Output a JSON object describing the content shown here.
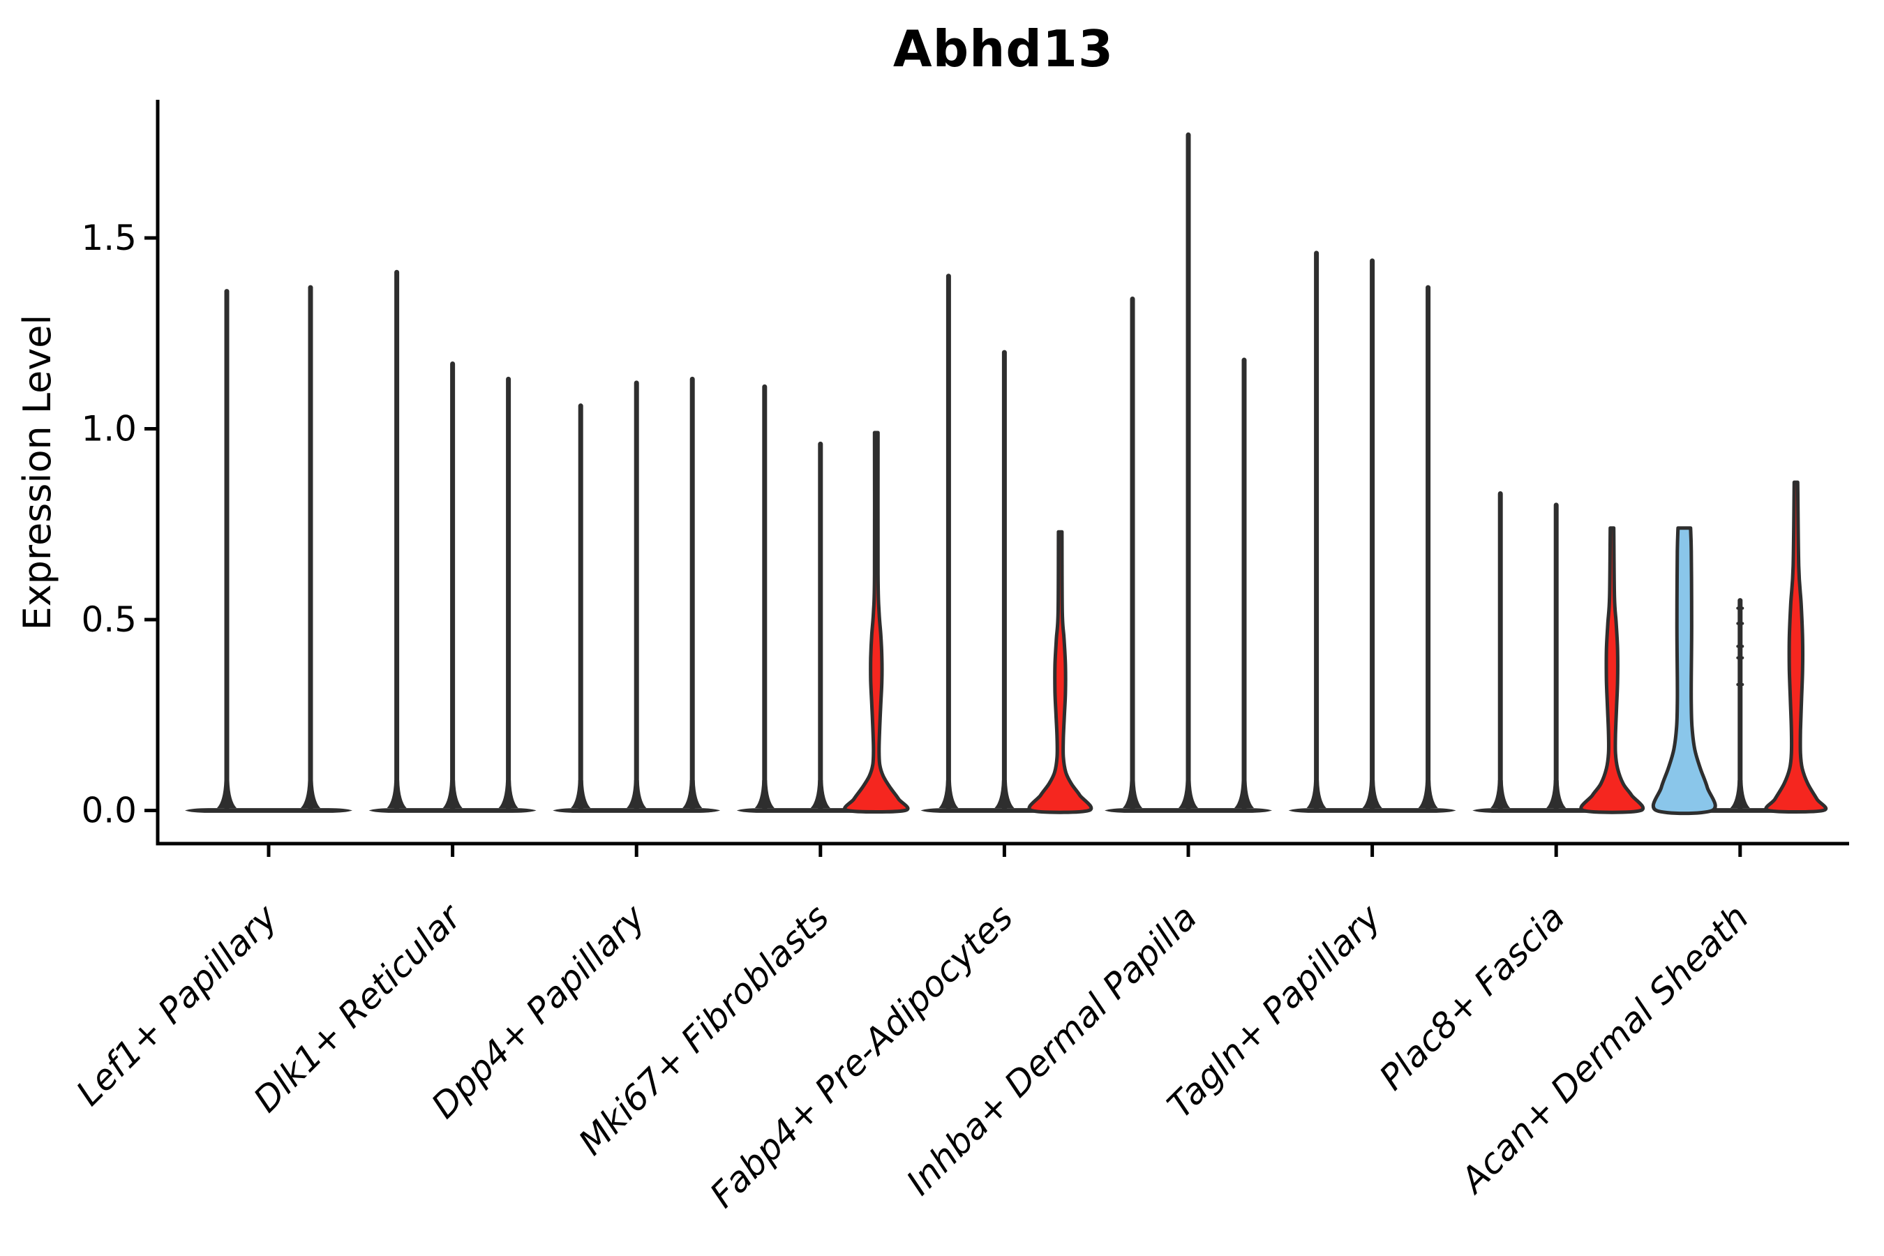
{
  "chart_data": {
    "type": "violin",
    "title": "Abhd13",
    "ylabel": "Expression Level",
    "xlabel": "",
    "yticks": [
      "0.0",
      "0.5",
      "1.0",
      "1.5"
    ],
    "ytick_values": [
      0.0,
      0.5,
      1.0,
      1.5
    ],
    "ylim": [
      0,
      1.86
    ],
    "grid": false,
    "legend": "none",
    "colors": {
      "red": "#f5261f",
      "blue": "#8ac6ea",
      "outline": "#2e2e2e",
      "axis": "#000000",
      "background": "#ffffff"
    },
    "categories": [
      "Lef1+ Papillary",
      "Dlk1+ Reticular",
      "Dpp4+ Papillary",
      "Mki67+ Fibroblasts",
      "Fabp4+ Pre-Adipocytes",
      "Inhba+ Dermal Papilla",
      "Tagln+ Papillary",
      "Plac8+ Fascia",
      "Acan+ Dermal Sheath"
    ],
    "groups": [
      {
        "category": "Lef1+ Papillary",
        "violins": [
          {
            "max": 1.36,
            "style": "spike"
          },
          {
            "max": 1.37,
            "style": "spike"
          }
        ]
      },
      {
        "category": "Dlk1+ Reticular",
        "violins": [
          {
            "max": 1.41,
            "style": "spike"
          },
          {
            "max": 1.17,
            "style": "spike"
          },
          {
            "max": 1.13,
            "style": "spike"
          }
        ]
      },
      {
        "category": "Dpp4+ Papillary",
        "violins": [
          {
            "max": 1.06,
            "style": "spike"
          },
          {
            "max": 1.12,
            "style": "spike"
          },
          {
            "max": 1.13,
            "style": "spike"
          }
        ]
      },
      {
        "category": "Mki67+ Fibroblasts",
        "violins": [
          {
            "max": 1.11,
            "style": "spike"
          },
          {
            "max": 0.96,
            "style": "spike"
          },
          {
            "max": 0.99,
            "style": "filled",
            "fill": "red",
            "profile": [
              [
                0.99,
                2.5
              ],
              [
                0.62,
                2.5
              ],
              [
                0.52,
                4
              ],
              [
                0.46,
                6.5
              ],
              [
                0.4,
                8
              ],
              [
                0.34,
                8
              ],
              [
                0.28,
                6.5
              ],
              [
                0.22,
                5
              ],
              [
                0.16,
                4
              ],
              [
                0.12,
                5
              ],
              [
                0.09,
                10
              ],
              [
                0.06,
                20
              ],
              [
                0.03,
                32
              ],
              [
                0.0,
                41
              ]
            ]
          }
        ]
      },
      {
        "category": "Fabp4+ Pre-Adipocytes",
        "violins": [
          {
            "max": 1.4,
            "style": "spike"
          },
          {
            "max": 1.2,
            "style": "spike"
          },
          {
            "max": 0.73,
            "style": "filled",
            "fill": "red",
            "profile": [
              [
                0.73,
                2.5
              ],
              [
                0.52,
                3
              ],
              [
                0.45,
                5.5
              ],
              [
                0.38,
                7.5
              ],
              [
                0.31,
                7.5
              ],
              [
                0.25,
                6
              ],
              [
                0.19,
                4.5
              ],
              [
                0.14,
                4.5
              ],
              [
                0.1,
                8
              ],
              [
                0.07,
                16
              ],
              [
                0.04,
                28
              ],
              [
                0.0,
                41
              ]
            ]
          }
        ]
      },
      {
        "category": "Inhba+ Dermal Papilla",
        "violins": [
          {
            "max": 1.34,
            "style": "spike"
          },
          {
            "max": 1.77,
            "style": "spike"
          },
          {
            "max": 1.18,
            "style": "spike"
          }
        ]
      },
      {
        "category": "Tagln+ Papillary",
        "violins": [
          {
            "max": 1.46,
            "style": "spike"
          },
          {
            "max": 1.44,
            "style": "spike"
          },
          {
            "max": 1.37,
            "style": "spike"
          }
        ]
      },
      {
        "category": "Plac8+ Fascia",
        "violins": [
          {
            "max": 0.83,
            "style": "spike"
          },
          {
            "max": 0.8,
            "style": "spike"
          },
          {
            "max": 0.74,
            "style": "filled",
            "fill": "red",
            "profile": [
              [
                0.74,
                2.5
              ],
              [
                0.56,
                3.5
              ],
              [
                0.49,
                6
              ],
              [
                0.42,
                8
              ],
              [
                0.34,
                8
              ],
              [
                0.27,
                6.5
              ],
              [
                0.2,
                5
              ],
              [
                0.15,
                5
              ],
              [
                0.11,
                8
              ],
              [
                0.07,
                16
              ],
              [
                0.04,
                28
              ],
              [
                0.0,
                41
              ]
            ]
          }
        ]
      },
      {
        "category": "Acan+ Dermal Sheath",
        "violins": [
          {
            "max": 0.74,
            "style": "filled",
            "fill": "blue",
            "flat_top": true,
            "profile": [
              [
                0.74,
                9
              ],
              [
                0.68,
                10
              ],
              [
                0.55,
                10.5
              ],
              [
                0.45,
                10.5
              ],
              [
                0.35,
                10
              ],
              [
                0.28,
                10
              ],
              [
                0.22,
                11
              ],
              [
                0.16,
                15
              ],
              [
                0.11,
                23
              ],
              [
                0.06,
                33
              ],
              [
                0.0,
                40
              ]
            ]
          },
          {
            "max": 0.55,
            "style": "spike",
            "dashes": [
              0.53,
              0.49,
              0.43,
              0.4,
              0.33
            ]
          },
          {
            "max": 0.86,
            "style": "filled",
            "fill": "red",
            "profile": [
              [
                0.86,
                2.5
              ],
              [
                0.64,
                4
              ],
              [
                0.54,
                7.5
              ],
              [
                0.45,
                9.5
              ],
              [
                0.37,
                9.5
              ],
              [
                0.29,
                8
              ],
              [
                0.21,
                6.5
              ],
              [
                0.15,
                6.5
              ],
              [
                0.11,
                9
              ],
              [
                0.07,
                17
              ],
              [
                0.03,
                30
              ],
              [
                0.0,
                39
              ]
            ]
          }
        ]
      }
    ]
  }
}
